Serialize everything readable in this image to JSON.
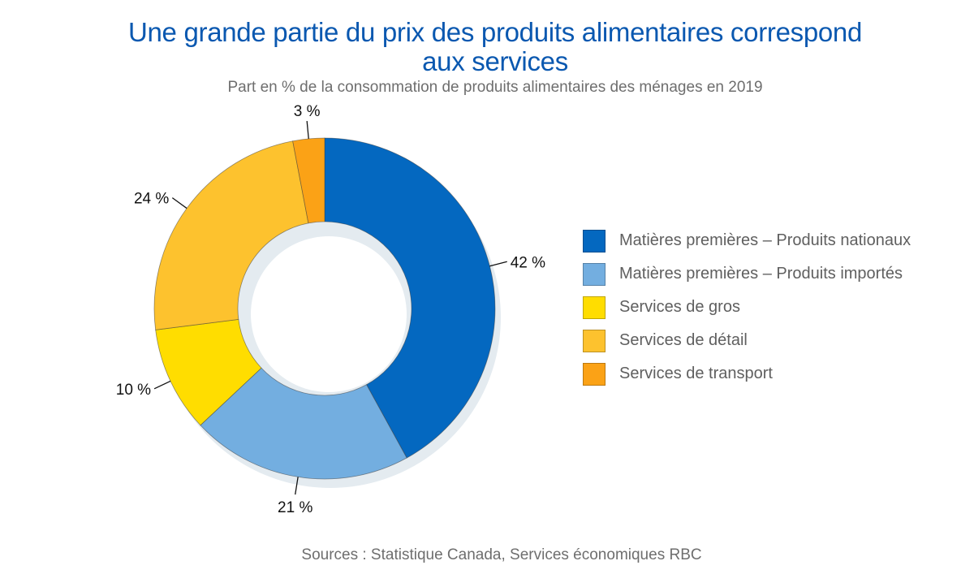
{
  "chart_data": {
    "type": "pie",
    "variant": "donut",
    "title": "Une grande partie du prix des produits alimentaires correspond aux services",
    "title_lines": [
      "Une grande partie du prix des produits alimentaires correspond",
      "aux services"
    ],
    "subtitle": "Part en % de la consommation de produits alimentaires des ménages en 2019",
    "source": "Sources : Statistique Canada, Services économiques RBC",
    "start_angle": "12 o'clock",
    "direction": "clockwise",
    "legend_position": "right",
    "slices": [
      {
        "name": "Matières premières – Produits nationaux",
        "value": 42,
        "label": "42 %",
        "color": "#0468c0"
      },
      {
        "name": "Matières premières – Produits importés",
        "value": 21,
        "label": "21 %",
        "color": "#73aee0"
      },
      {
        "name": "Services de gros",
        "value": 10,
        "label": "10 %",
        "color": "#ffdd00"
      },
      {
        "name": "Services de détail",
        "value": 24,
        "label": "24 %",
        "color": "#fdc22e"
      },
      {
        "name": "Services de transport",
        "value": 3,
        "label": "3 %",
        "color": "#fba216"
      }
    ],
    "unit": "%"
  },
  "colors": {
    "title": "#0a58b0",
    "text_muted": "#6e6e6e",
    "shadow": "#e4ebf0"
  }
}
